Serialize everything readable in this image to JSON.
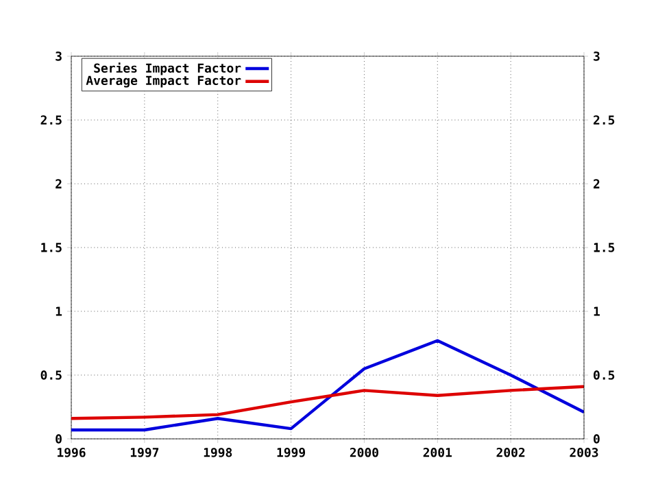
{
  "chart_data": {
    "type": "line",
    "x": [
      1996,
      1997,
      1998,
      1999,
      2000,
      2001,
      2002,
      2003
    ],
    "series": [
      {
        "name": "Series Impact Factor",
        "color": "#0000dd",
        "values": [
          0.07,
          0.07,
          0.16,
          0.08,
          0.55,
          0.77,
          0.5,
          0.21
        ]
      },
      {
        "name": "Average Impact Factor",
        "color": "#dd0000",
        "values": [
          0.16,
          0.17,
          0.19,
          0.29,
          0.38,
          0.34,
          0.38,
          0.41
        ]
      }
    ],
    "xlim": [
      1996,
      2003
    ],
    "xticks": [
      1996,
      1997,
      1998,
      1999,
      2000,
      2001,
      2002,
      2003
    ],
    "ylim": [
      0,
      3
    ],
    "yticks": [
      0,
      0.5,
      1,
      1.5,
      2,
      2.5,
      3
    ],
    "y2lim": [
      0,
      3
    ],
    "y2ticks": [
      0,
      0.5,
      1,
      1.5,
      2,
      2.5,
      3
    ],
    "grid": true,
    "legend": "top left",
    "marker": "none",
    "line_style": "solid"
  }
}
